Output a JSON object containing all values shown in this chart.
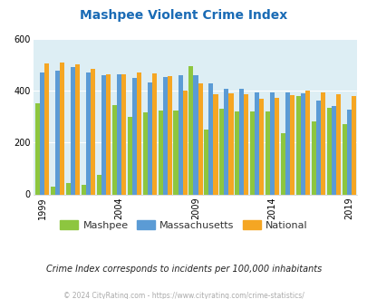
{
  "title": "Mashpee Violent Crime Index",
  "years": [
    1999,
    2000,
    2001,
    2002,
    2003,
    2004,
    2005,
    2006,
    2007,
    2008,
    2009,
    2010,
    2011,
    2012,
    2013,
    2014,
    2015,
    2016,
    2017,
    2018,
    2019
  ],
  "mashpee": [
    350,
    28,
    45,
    38,
    75,
    345,
    300,
    315,
    325,
    325,
    495,
    250,
    330,
    320,
    320,
    320,
    235,
    380,
    280,
    333,
    270
  ],
  "massachusetts": [
    472,
    478,
    490,
    472,
    460,
    462,
    450,
    432,
    452,
    460,
    460,
    428,
    406,
    406,
    393,
    393,
    393,
    390,
    362,
    342,
    326
  ],
  "national": [
    506,
    507,
    500,
    484,
    465,
    464,
    470,
    466,
    455,
    402,
    430,
    388,
    390,
    388,
    370,
    372,
    382,
    400,
    395,
    385,
    380
  ],
  "mashpee_color": "#8dc63f",
  "massachusetts_color": "#5b9bd5",
  "national_color": "#f5a623",
  "bg_color": "#ddeef4",
  "ylim": [
    0,
    600
  ],
  "yticks": [
    0,
    200,
    400,
    600
  ],
  "xticks": [
    1999,
    2004,
    2009,
    2014,
    2019
  ],
  "legend_labels": [
    "Mashpee",
    "Massachusetts",
    "National"
  ],
  "subtitle": "Crime Index corresponds to incidents per 100,000 inhabitants",
  "footer": "© 2024 CityRating.com - https://www.cityrating.com/crime-statistics/",
  "title_color": "#1a6bb5",
  "subtitle_color": "#222222",
  "footer_color": "#aaaaaa"
}
